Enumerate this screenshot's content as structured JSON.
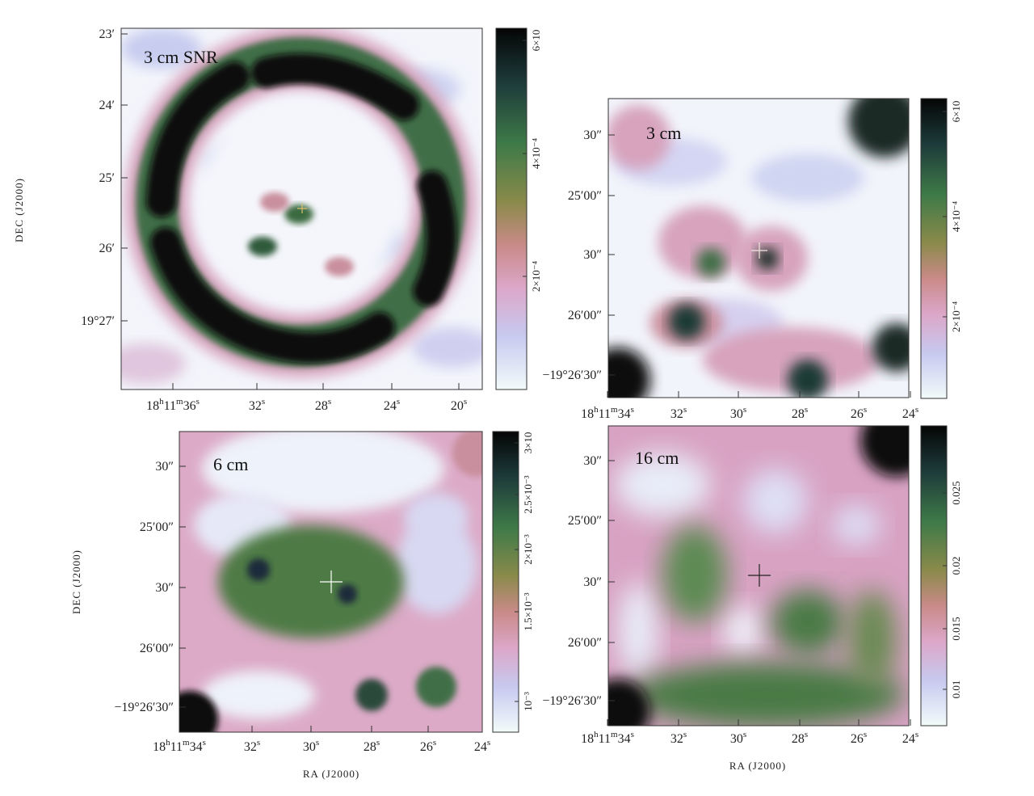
{
  "panels": [
    {
      "label": "3 cm SNR",
      "y_label": "DEC (J2000)",
      "y_ticks": [
        "23′",
        "24′",
        "25′",
        "26′",
        "19°27′"
      ],
      "x_ticks": [
        "18h11m36s",
        "32s",
        "28s",
        "24s",
        "20s"
      ],
      "colorbar_ticks": [
        "6×10",
        "4×10⁻⁴",
        "2×10⁻⁴"
      ]
    },
    {
      "label": "3 cm",
      "y_ticks": [
        "30″",
        "25′00″",
        "30″",
        "26′00″",
        "−19°26′30″"
      ],
      "x_ticks": [
        "18h11m34s",
        "32s",
        "30s",
        "28s",
        "26s",
        "24s"
      ],
      "colorbar_ticks": [
        "6×10",
        "4×10⁻⁴",
        "2×10⁻⁴"
      ]
    },
    {
      "label": "6 cm",
      "y_label": "DEC (J2000)",
      "x_label": "RA (J2000)",
      "y_ticks": [
        "30″",
        "25′00″",
        "30″",
        "26′00″",
        "−19°26′30″"
      ],
      "x_ticks": [
        "18h11m34s",
        "32s",
        "30s",
        "28s",
        "26s",
        "24s"
      ],
      "colorbar_ticks": [
        "3×10",
        "2.5×10⁻³",
        "2×10⁻³",
        "1.5×10⁻³",
        "10⁻³"
      ]
    },
    {
      "label": "16 cm",
      "x_label": "RA (J2000)",
      "y_ticks": [
        "30″",
        "25′00″",
        "30″",
        "26′00″",
        "−19°26′30″"
      ],
      "x_ticks": [
        "18h11m34s",
        "32s",
        "30s",
        "28s",
        "26s",
        "24s"
      ],
      "colorbar_ticks": [
        "0.025",
        "0.02",
        "0.015",
        "0.01"
      ]
    }
  ]
}
